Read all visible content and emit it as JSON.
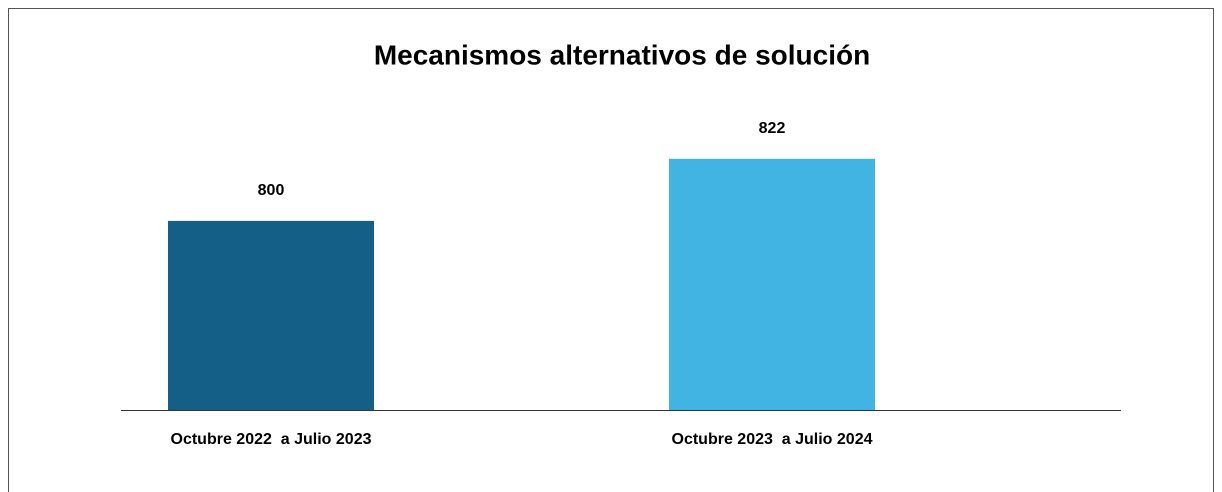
{
  "chart_data": {
    "type": "bar",
    "title": "Mecanismos alternativos de solución",
    "categories": [
      "Octubre 2022  a Julio 2023",
      "Octubre 2023  a Julio 2024"
    ],
    "values": [
      800,
      822
    ],
    "colors": [
      "#135f87",
      "#41b4e4"
    ],
    "ylim": [
      733,
      840
    ]
  }
}
